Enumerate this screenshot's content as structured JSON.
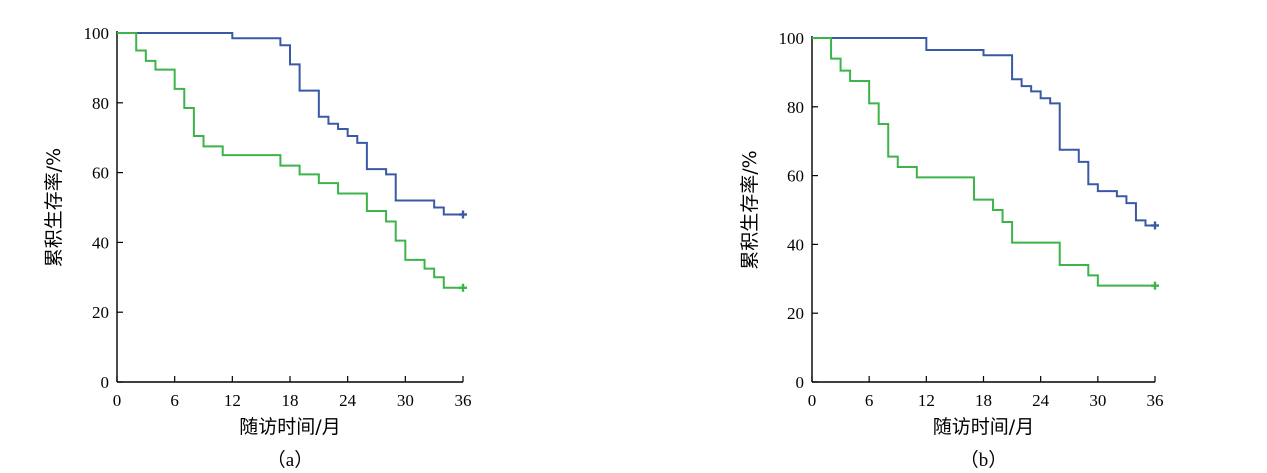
{
  "chart_data": [
    {
      "type": "line",
      "panel_caption": "（a）",
      "xlabel": "随访时间/月",
      "ylabel": "累积生存率/%",
      "xlim": [
        0,
        36
      ],
      "ylim": [
        0,
        100
      ],
      "xticks": [
        "0",
        "6",
        "12",
        "18",
        "24",
        "30",
        "36"
      ],
      "yticks": [
        "0",
        "20",
        "40",
        "60",
        "80",
        "100"
      ],
      "step": true,
      "censor_marker": "+",
      "colors": [
        "#3a59a5",
        "#3cb44a"
      ],
      "series": [
        {
          "x": [
            0,
            12,
            17,
            18,
            19,
            21,
            22,
            23,
            24,
            25,
            26,
            28,
            29,
            31,
            33,
            34,
            36
          ],
          "y": [
            100,
            98.5,
            96.5,
            91,
            83.5,
            76,
            74,
            72.5,
            70.5,
            68.5,
            61,
            59.5,
            52,
            52,
            50,
            48,
            48
          ]
        },
        {
          "x": [
            0,
            2,
            3,
            4,
            6,
            7,
            8,
            9,
            11,
            17,
            19,
            21,
            23,
            26,
            28,
            29,
            30,
            32,
            33,
            34,
            36
          ],
          "y": [
            100,
            95,
            92,
            89.5,
            84,
            78.5,
            70.5,
            67.5,
            65,
            62,
            59.5,
            57,
            54,
            49,
            46,
            40.5,
            35,
            32.5,
            30,
            27,
            27
          ]
        }
      ]
    },
    {
      "type": "line",
      "panel_caption": "（b）",
      "xlabel": "随访时间/月",
      "ylabel": "累积生存率/%",
      "xlim": [
        0,
        36
      ],
      "ylim": [
        0,
        100
      ],
      "xticks": [
        "0",
        "6",
        "12",
        "18",
        "24",
        "30",
        "36"
      ],
      "yticks": [
        "0",
        "20",
        "40",
        "60",
        "80",
        "100"
      ],
      "step": true,
      "censor_marker": "+",
      "colors": [
        "#3a59a5",
        "#3cb44a"
      ],
      "series": [
        {
          "x": [
            0,
            12,
            18,
            21,
            22,
            23,
            24,
            25,
            26,
            28,
            29,
            30,
            32,
            33,
            34,
            35,
            36
          ],
          "y": [
            100,
            96.5,
            95,
            88,
            86,
            84.5,
            82.5,
            81,
            67.5,
            64,
            57.5,
            55.5,
            54,
            52,
            47,
            45.5,
            45.5
          ]
        },
        {
          "x": [
            0,
            2,
            3,
            4,
            6,
            7,
            8,
            9,
            11,
            17,
            19,
            20,
            21,
            26,
            29,
            30,
            36
          ],
          "y": [
            100,
            94,
            90.5,
            87.5,
            81,
            75,
            65.5,
            62.5,
            59.5,
            53,
            50,
            46.5,
            40.5,
            34,
            31,
            28,
            28
          ]
        }
      ]
    }
  ]
}
